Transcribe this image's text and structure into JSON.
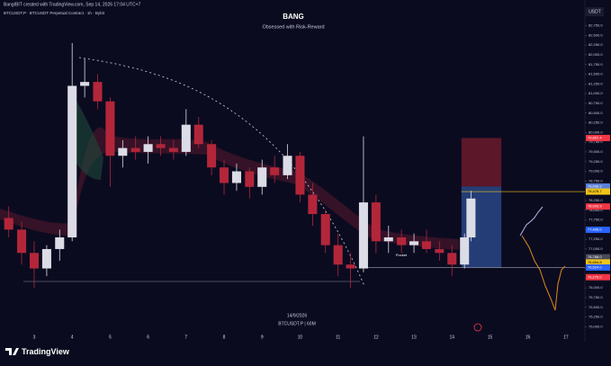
{
  "header": {
    "line1": "BangIBIT created with TradingView.com, Sep 14, 2026 17:04 UTC+7",
    "line2": "BTCUSDT.P · BTCUSDT Perpetual Contract · 1h · Bybit"
  },
  "footer": {
    "logo": "TradingView"
  },
  "chart_data": {
    "type": "candlestick",
    "title": "BANG",
    "subtitle": "Obsessed with Risk-Reward",
    "date_label": "14/9/2026",
    "symbol_label": "BTCUSDT.P | 60M",
    "axis_unit": "USDT",
    "pocket_label": "Pocket",
    "colors": {
      "up": "#dcdce6",
      "down": "#b3263a"
    },
    "xlim": [
      2.1,
      17.5
    ],
    "xticks": [
      3,
      4,
      5,
      6,
      7,
      8,
      9,
      10,
      11,
      12,
      13,
      14,
      15,
      16,
      17
    ],
    "ylim": [
      74800,
      82900
    ],
    "yticks": [
      {
        "value": 75000,
        "label": "75,000.0"
      },
      {
        "value": 75250,
        "label": "75,250.0"
      },
      {
        "value": 75500,
        "label": "75,500.0"
      },
      {
        "value": 75750,
        "label": "75,750.0"
      },
      {
        "value": 76000,
        "label": "76,000.0"
      },
      {
        "value": 76250,
        "label": "76,250.0"
      },
      {
        "value": 76500,
        "label": "76,500.0"
      },
      {
        "value": 76750,
        "label": "76,750.0"
      },
      {
        "value": 77000,
        "label": "77,000.0"
      },
      {
        "value": 77250,
        "label": "77,250.0"
      },
      {
        "value": 77500,
        "label": "77,500.0"
      },
      {
        "value": 77750,
        "label": "77,750.0"
      },
      {
        "value": 78000,
        "label": "78,000.0"
      },
      {
        "value": 78250,
        "label": "78,250.0"
      },
      {
        "value": 78500,
        "label": "78,500.0"
      },
      {
        "value": 78750,
        "label": "78,750.0"
      },
      {
        "value": 79000,
        "label": "79,000.0"
      },
      {
        "value": 79250,
        "label": "79,250.0"
      },
      {
        "value": 79500,
        "label": "79,500.0"
      },
      {
        "value": 79750,
        "label": "79,750.0"
      },
      {
        "value": 80000,
        "label": "80,000.0"
      },
      {
        "value": 80250,
        "label": "80,250.0"
      },
      {
        "value": 80500,
        "label": "80,500.0"
      },
      {
        "value": 80750,
        "label": "80,750.0"
      },
      {
        "value": 81000,
        "label": "81,000.0"
      },
      {
        "value": 81250,
        "label": "81,250.0"
      },
      {
        "value": 81500,
        "label": "81,500.0"
      },
      {
        "value": 81750,
        "label": "81,750.0"
      },
      {
        "value": 82000,
        "label": "82,000.0"
      },
      {
        "value": 82250,
        "label": "82,250.0"
      },
      {
        "value": 82500,
        "label": "82,500.0"
      },
      {
        "value": 82750,
        "label": "82,750.0"
      }
    ],
    "x": [
      2.33,
      2.67,
      3.0,
      3.33,
      3.67,
      4.0,
      4.33,
      4.67,
      5.0,
      5.33,
      5.67,
      6.0,
      6.33,
      6.67,
      7.0,
      7.33,
      7.67,
      8.0,
      8.33,
      8.67,
      9.0,
      9.33,
      9.67,
      10.0,
      10.33,
      10.67,
      11.0,
      11.33,
      11.67,
      12.0,
      12.33,
      12.67,
      13.0,
      13.33,
      13.67,
      14.0,
      14.33,
      14.5
    ],
    "open": [
      77800,
      77500,
      76900,
      76500,
      77000,
      77300,
      81200,
      81300,
      80800,
      79400,
      79600,
      79500,
      79700,
      79600,
      79500,
      80200,
      79700,
      79100,
      78700,
      79000,
      78600,
      79100,
      78900,
      79400,
      78400,
      77900,
      77100,
      76600,
      76500,
      78200,
      77200,
      77300,
      77100,
      77200,
      77000,
      76900,
      76600,
      77300
    ],
    "high": [
      78100,
      77700,
      77200,
      77100,
      77500,
      82300,
      81900,
      81500,
      80900,
      79800,
      79900,
      79900,
      79900,
      79800,
      80600,
      80400,
      79800,
      79300,
      79200,
      79100,
      79300,
      79400,
      79700,
      79500,
      78700,
      78000,
      77400,
      76900,
      79900,
      78400,
      77600,
      77500,
      77400,
      77500,
      77200,
      77100,
      77400,
      78500
    ],
    "low": [
      77300,
      76600,
      76000,
      76300,
      76700,
      77200,
      80900,
      80600,
      78600,
      79100,
      79300,
      79200,
      79400,
      79300,
      79400,
      79600,
      78900,
      78400,
      78500,
      78300,
      78400,
      78700,
      78800,
      78200,
      77600,
      76900,
      76300,
      76000,
      76400,
      76900,
      76900,
      76900,
      76900,
      76900,
      76700,
      76300,
      76500,
      77200
    ],
    "close": [
      77500,
      76900,
      76500,
      77000,
      77300,
      81200,
      81300,
      80800,
      79400,
      79600,
      79500,
      79700,
      79600,
      79500,
      80200,
      79700,
      79100,
      78700,
      79000,
      78600,
      79100,
      78900,
      79400,
      78400,
      77900,
      77100,
      76600,
      76500,
      78200,
      77200,
      77300,
      77100,
      77200,
      77000,
      76900,
      76600,
      77300,
      78300
    ],
    "position": {
      "x_start": 14.25,
      "x_end": 15.3,
      "stop": 79857.4,
      "entry": 78608.9,
      "target": 76524.0
    },
    "levels": [
      {
        "value": 79857.4,
        "label": "79,857.4",
        "color": "#f23645"
      },
      {
        "value": 78608.9,
        "label": "78,608.9",
        "color": "#5b7fd6"
      },
      {
        "value": 78478.7,
        "label": "78,478.7",
        "color": "#f0c419"
      },
      {
        "value": 78093.9,
        "label": "78,093.9",
        "color": "#f23645"
      },
      {
        "value": 77495.0,
        "label": "77,495.0",
        "color": "#2962ff"
      },
      {
        "value": 76788.0,
        "label": "76,788.0",
        "color": "#4a4a5a"
      },
      {
        "value": 76654.8,
        "label": "76,654.8",
        "color": "#f0c419"
      },
      {
        "value": 76524.0,
        "label": "76,524.0",
        "color": "#2962ff"
      },
      {
        "value": 76276.0,
        "label": "76,276.0",
        "color": "#f23645"
      }
    ]
  }
}
